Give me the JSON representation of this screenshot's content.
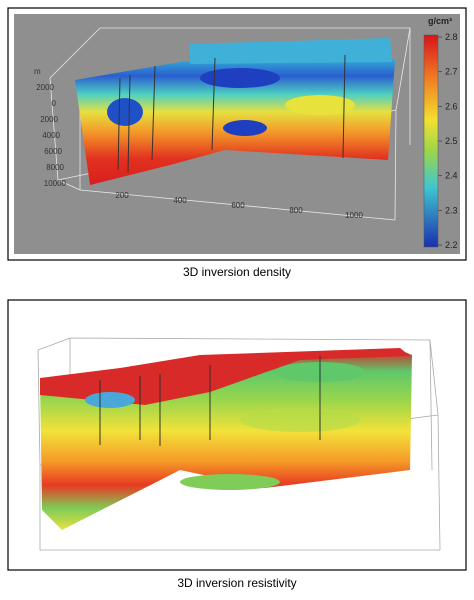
{
  "panels": [
    {
      "caption": "3D inversion density",
      "axis_unit": "m",
      "depth_labels": [
        "2000",
        "0",
        "2000",
        "4000",
        "6000",
        "8000",
        "10000"
      ],
      "distance_labels": [
        "200",
        "400",
        "600",
        "800",
        "1000"
      ],
      "colorbar": {
        "title": "g/cm³",
        "ticks": [
          2.8,
          2.7,
          2.6,
          2.5,
          2.4,
          2.3,
          2.2
        ]
      }
    },
    {
      "caption": "3D inversion resistivity"
    }
  ]
}
